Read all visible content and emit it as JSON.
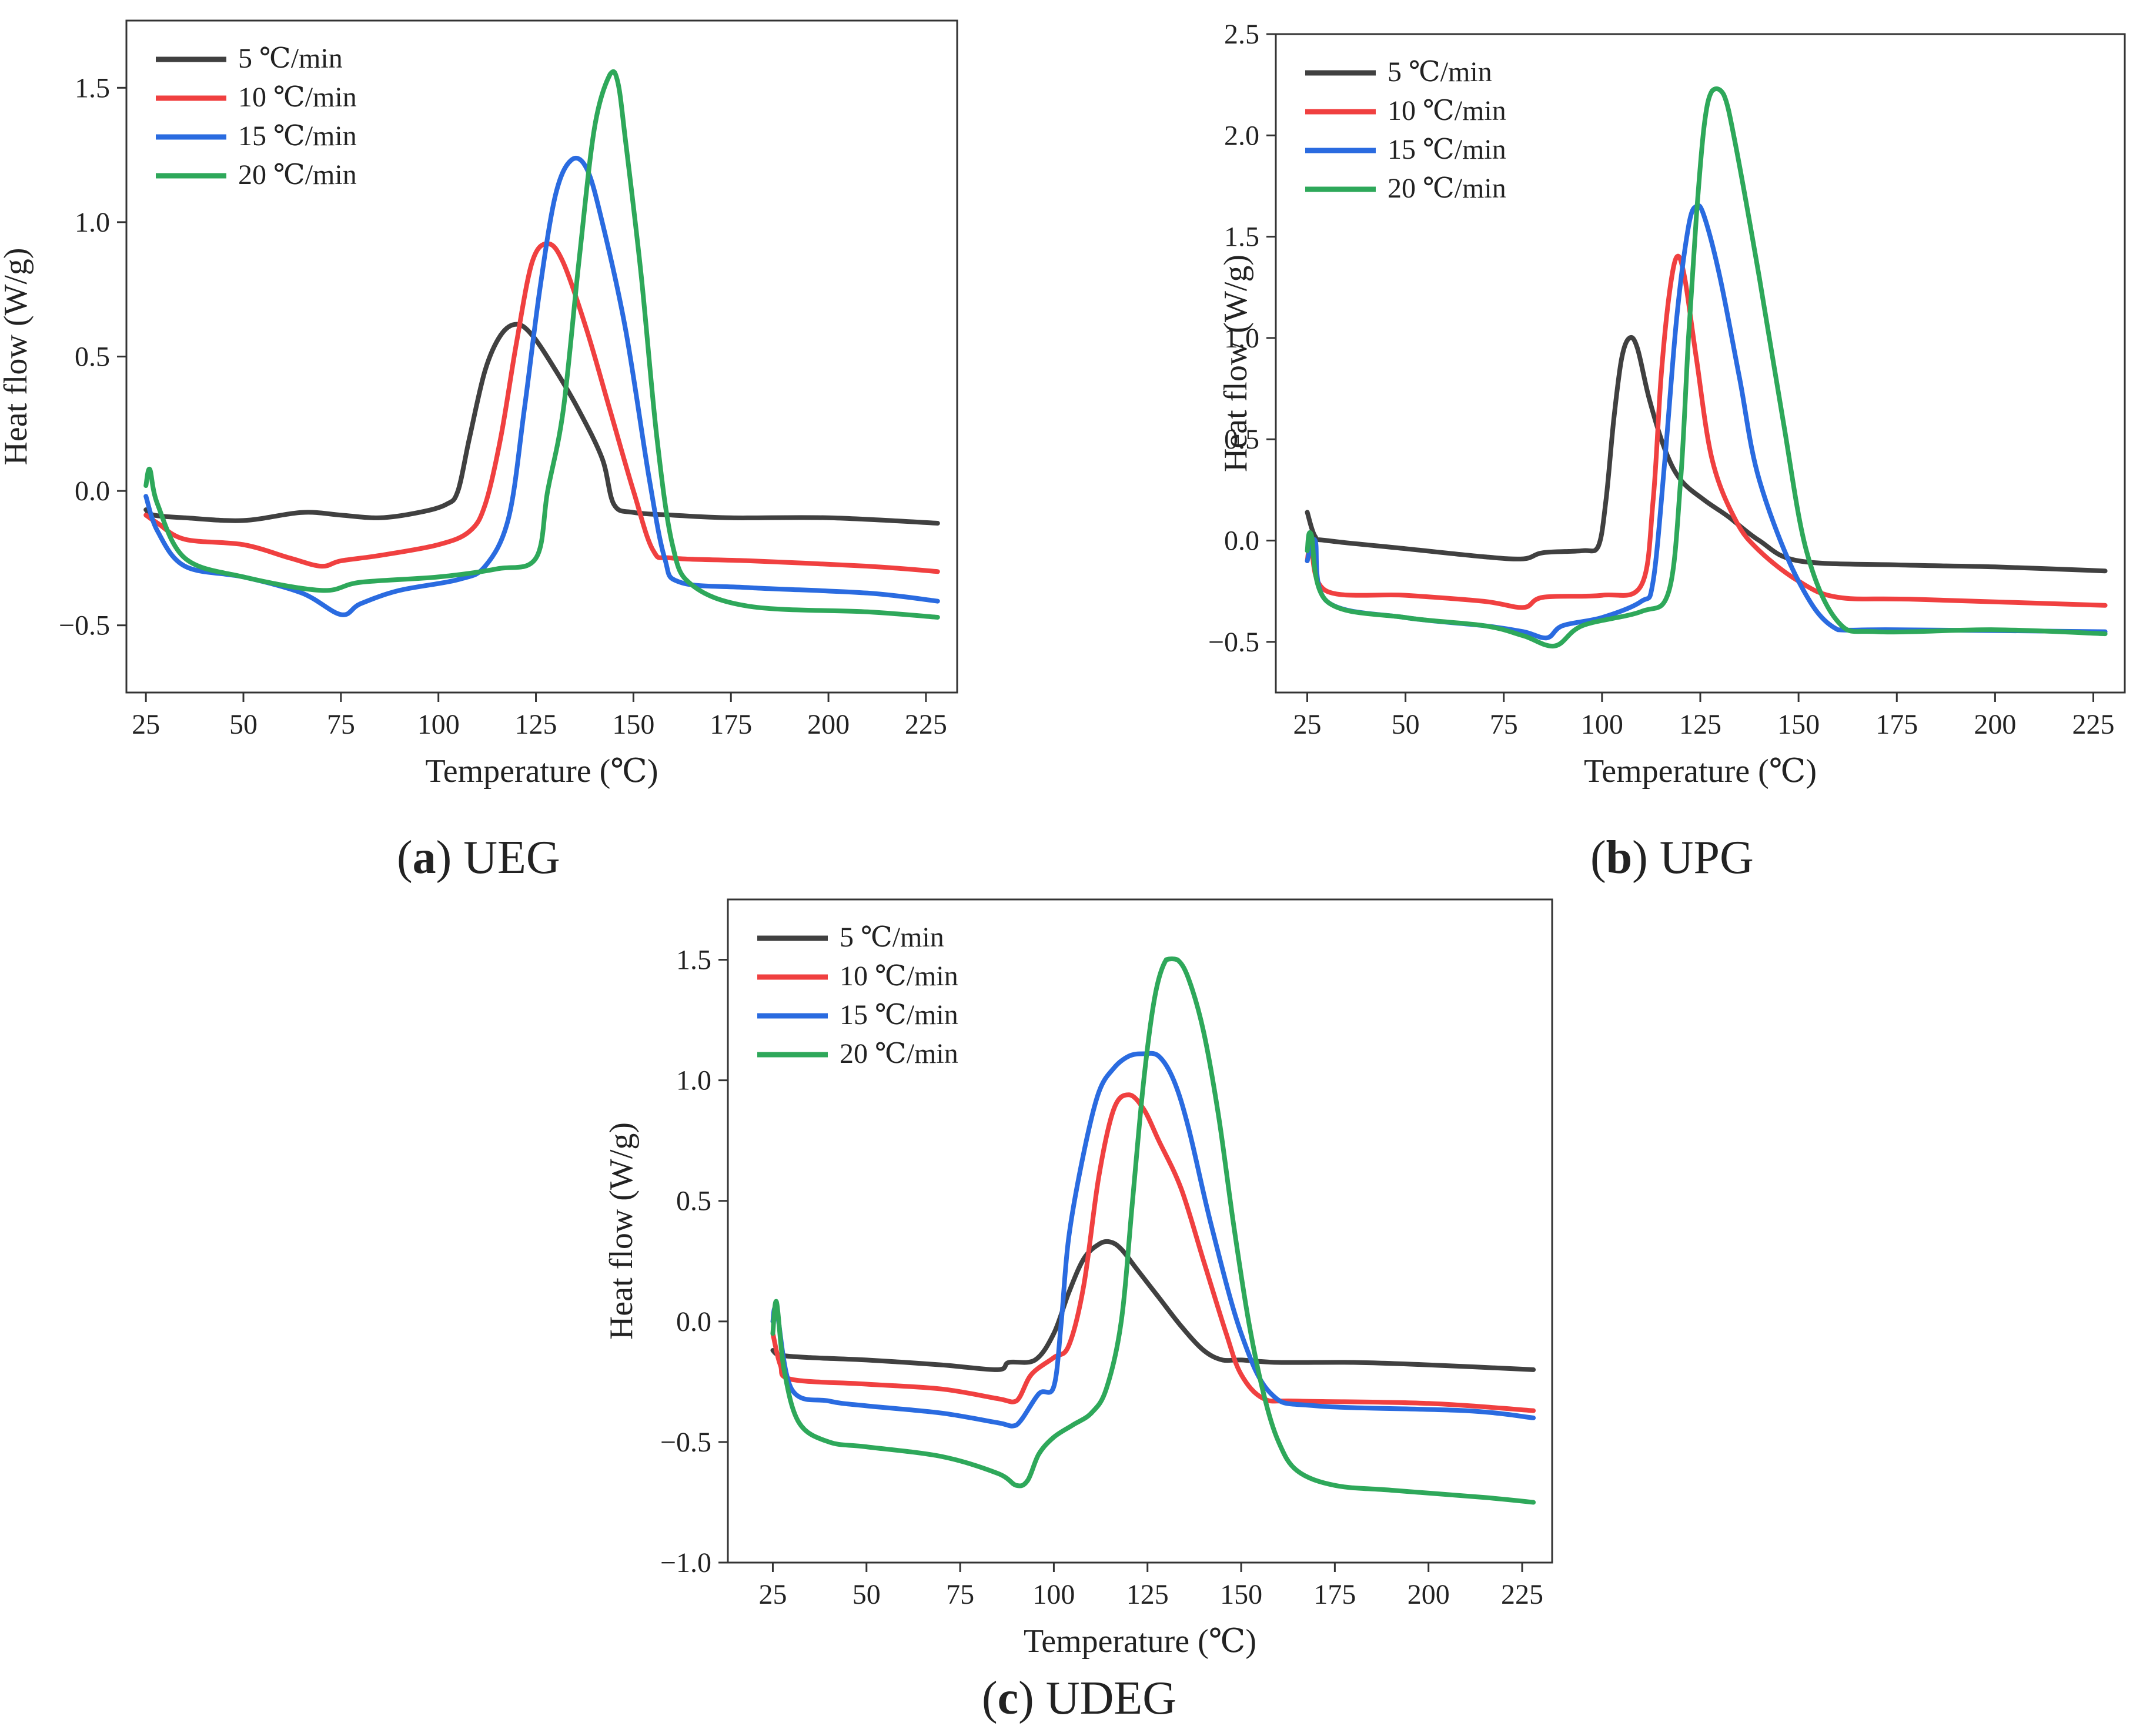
{
  "figure": {
    "captions": [
      {
        "letter": "a",
        "name": "UEG"
      },
      {
        "letter": "b",
        "name": "UPG"
      },
      {
        "letter": "c",
        "name": "UDEG"
      }
    ]
  },
  "chart_data": [
    {
      "id": "a",
      "type": "line",
      "caption_letter": "a",
      "caption_name": "UEG",
      "xlabel": "Temperature (℃)",
      "ylabel": "Heat flow (W/g)",
      "xlim": [
        20,
        233
      ],
      "ylim": [
        -0.75,
        1.75
      ],
      "xticks": [
        25,
        50,
        75,
        100,
        125,
        150,
        175,
        200,
        225
      ],
      "yticks": [
        -0.5,
        0.0,
        0.5,
        1.0,
        1.5
      ],
      "ytick_labels": [
        "−0.5",
        "0.0",
        "0.5",
        "1.0",
        "1.5"
      ],
      "legend_position": "top-left",
      "series": [
        {
          "name": "5 ℃/min",
          "color": "#404040",
          "x": [
            25,
            27,
            35,
            50,
            65,
            75,
            85,
            95,
            102,
            105,
            108,
            112,
            116,
            120,
            124,
            130,
            136,
            142,
            145,
            150,
            160,
            175,
            200,
            228
          ],
          "y": [
            -0.07,
            -0.09,
            -0.1,
            -0.11,
            -0.08,
            -0.09,
            -0.1,
            -0.08,
            -0.05,
            0.0,
            0.2,
            0.45,
            0.58,
            0.62,
            0.58,
            0.45,
            0.3,
            0.12,
            -0.05,
            -0.08,
            -0.09,
            -0.1,
            -0.1,
            -0.12
          ]
        },
        {
          "name": "10 ℃/min",
          "color": "#f04040",
          "x": [
            25,
            28,
            35,
            50,
            62,
            70,
            75,
            85,
            100,
            108,
            112,
            116,
            120,
            124,
            128,
            132,
            138,
            144,
            150,
            155,
            160,
            180,
            210,
            228
          ],
          "y": [
            -0.09,
            -0.12,
            -0.18,
            -0.2,
            -0.25,
            -0.28,
            -0.26,
            -0.24,
            -0.2,
            -0.15,
            -0.05,
            0.2,
            0.55,
            0.85,
            0.92,
            0.85,
            0.6,
            0.3,
            0.0,
            -0.22,
            -0.25,
            -0.26,
            -0.28,
            -0.3
          ]
        },
        {
          "name": "15 ℃/min",
          "color": "#2a6be0",
          "x": [
            25,
            28,
            35,
            50,
            65,
            75,
            80,
            90,
            105,
            112,
            118,
            122,
            126,
            130,
            134,
            138,
            142,
            148,
            154,
            158,
            162,
            180,
            210,
            228
          ],
          "y": [
            -0.02,
            -0.15,
            -0.28,
            -0.32,
            -0.38,
            -0.46,
            -0.42,
            -0.37,
            -0.33,
            -0.28,
            -0.1,
            0.3,
            0.75,
            1.1,
            1.23,
            1.2,
            1.0,
            0.6,
            0.05,
            -0.25,
            -0.34,
            -0.36,
            -0.38,
            -0.41
          ]
        },
        {
          "name": "20 ℃/min",
          "color": "#2ea85a",
          "x": [
            25,
            26,
            28,
            35,
            50,
            70,
            80,
            100,
            115,
            125,
            128,
            132,
            136,
            140,
            144,
            146,
            148,
            152,
            156,
            160,
            165,
            180,
            210,
            228
          ],
          "y": [
            0.02,
            0.08,
            -0.05,
            -0.25,
            -0.32,
            -0.37,
            -0.34,
            -0.32,
            -0.29,
            -0.25,
            0.0,
            0.3,
            0.85,
            1.35,
            1.55,
            1.52,
            1.3,
            0.8,
            0.2,
            -0.2,
            -0.35,
            -0.43,
            -0.45,
            -0.47
          ]
        }
      ]
    },
    {
      "id": "b",
      "type": "line",
      "caption_letter": "b",
      "caption_name": "UPG",
      "xlabel": "Temperature (℃)",
      "ylabel": "Heat flow (W/g)",
      "xlim": [
        17,
        233
      ],
      "ylim": [
        -0.75,
        2.5
      ],
      "xticks": [
        25,
        50,
        75,
        100,
        125,
        150,
        175,
        200,
        225
      ],
      "yticks": [
        -0.5,
        0.0,
        0.5,
        1.0,
        1.5,
        2.0,
        2.5
      ],
      "ytick_labels": [
        "−0.5",
        "0.0",
        "0.5",
        "1.0",
        "1.5",
        "2.0",
        "2.5"
      ],
      "legend_position": "top-left",
      "series": [
        {
          "name": "5 ℃/min",
          "color": "#404040",
          "x": [
            25,
            27,
            30,
            50,
            70,
            80,
            85,
            95,
            99,
            101,
            103,
            105,
            107,
            109,
            112,
            116,
            120,
            126,
            132,
            140,
            150,
            175,
            200,
            228
          ],
          "y": [
            0.14,
            0.02,
            0.0,
            -0.04,
            -0.08,
            -0.09,
            -0.06,
            -0.05,
            -0.03,
            0.2,
            0.6,
            0.9,
            1.0,
            0.95,
            0.7,
            0.45,
            0.3,
            0.2,
            0.12,
            0.0,
            -0.1,
            -0.12,
            -0.13,
            -0.15
          ]
        },
        {
          "name": "10 ℃/min",
          "color": "#f04040",
          "x": [
            25,
            26,
            30,
            50,
            70,
            80,
            85,
            100,
            110,
            113,
            115,
            117,
            119,
            121,
            124,
            128,
            134,
            140,
            150,
            160,
            180,
            228
          ],
          "y": [
            -0.1,
            -0.05,
            -0.25,
            -0.27,
            -0.3,
            -0.33,
            -0.28,
            -0.27,
            -0.22,
            0.2,
            0.8,
            1.2,
            1.4,
            1.3,
            0.9,
            0.4,
            0.1,
            -0.05,
            -0.2,
            -0.28,
            -0.29,
            -0.32
          ]
        },
        {
          "name": "15 ℃/min",
          "color": "#2a6be0",
          "x": [
            25,
            27,
            30,
            50,
            70,
            80,
            86,
            90,
            100,
            110,
            113,
            116,
            119,
            122,
            124,
            126,
            130,
            135,
            140,
            150,
            160,
            175,
            228
          ],
          "y": [
            -0.1,
            0.0,
            -0.3,
            -0.38,
            -0.42,
            -0.45,
            -0.48,
            -0.42,
            -0.38,
            -0.3,
            -0.2,
            0.4,
            1.1,
            1.55,
            1.65,
            1.6,
            1.3,
            0.8,
            0.3,
            -0.2,
            -0.44,
            -0.44,
            -0.45
          ]
        },
        {
          "name": "20 ℃/min",
          "color": "#2ea85a",
          "x": [
            25,
            26,
            30,
            50,
            70,
            80,
            88,
            95,
            110,
            117,
            120,
            122,
            124,
            126,
            128,
            131,
            134,
            140,
            146,
            152,
            160,
            170,
            200,
            228
          ],
          "y": [
            -0.05,
            0.03,
            -0.3,
            -0.38,
            -0.42,
            -0.47,
            -0.52,
            -0.42,
            -0.35,
            -0.25,
            0.3,
            1.0,
            1.6,
            2.05,
            2.22,
            2.2,
            1.95,
            1.3,
            0.6,
            -0.05,
            -0.4,
            -0.45,
            -0.44,
            -0.46
          ]
        }
      ]
    },
    {
      "id": "c",
      "type": "line",
      "caption_letter": "c",
      "caption_name": "UDEG",
      "xlabel": "Temperature (℃)",
      "ylabel": "Heat flow (W/g)",
      "xlim": [
        13,
        233
      ],
      "ylim": [
        -1.0,
        1.75
      ],
      "xticks": [
        25,
        50,
        75,
        100,
        125,
        150,
        175,
        200,
        225
      ],
      "yticks": [
        -1.0,
        -0.5,
        0.0,
        0.5,
        1.0,
        1.5
      ],
      "ytick_labels": [
        "−1.0",
        "−0.5",
        "0.0",
        "0.5",
        "1.0",
        "1.5"
      ],
      "legend_position": "top-left",
      "series": [
        {
          "name": "5 ℃/min",
          "color": "#404040",
          "x": [
            25,
            27,
            35,
            50,
            70,
            85,
            88,
            95,
            100,
            104,
            108,
            112,
            115,
            118,
            122,
            128,
            134,
            140,
            145,
            150,
            160,
            180,
            200,
            228
          ],
          "y": [
            -0.12,
            -0.14,
            -0.15,
            -0.16,
            -0.18,
            -0.2,
            -0.17,
            -0.16,
            -0.05,
            0.12,
            0.26,
            0.32,
            0.33,
            0.3,
            0.22,
            0.1,
            -0.02,
            -0.12,
            -0.16,
            -0.16,
            -0.17,
            -0.17,
            -0.18,
            -0.2
          ]
        },
        {
          "name": "10 ℃/min",
          "color": "#f04040",
          "x": [
            25,
            27,
            30,
            50,
            70,
            85,
            90,
            94,
            100,
            104,
            108,
            112,
            116,
            120,
            124,
            128,
            134,
            140,
            146,
            150,
            156,
            165,
            200,
            228
          ],
          "y": [
            -0.05,
            -0.18,
            -0.24,
            -0.26,
            -0.28,
            -0.32,
            -0.33,
            -0.22,
            -0.15,
            -0.1,
            0.15,
            0.6,
            0.88,
            0.94,
            0.88,
            0.75,
            0.55,
            0.25,
            -0.05,
            -0.22,
            -0.32,
            -0.33,
            -0.34,
            -0.37
          ]
        },
        {
          "name": "15 ℃/min",
          "color": "#2a6be0",
          "x": [
            25,
            26,
            30,
            40,
            50,
            70,
            85,
            90,
            96,
            100,
            102,
            104,
            108,
            112,
            116,
            120,
            124,
            128,
            132,
            136,
            142,
            150,
            158,
            170,
            210,
            228
          ],
          "y": [
            0.0,
            0.05,
            -0.28,
            -0.33,
            -0.35,
            -0.38,
            -0.42,
            -0.43,
            -0.3,
            -0.27,
            0.0,
            0.35,
            0.7,
            0.95,
            1.05,
            1.1,
            1.11,
            1.1,
            1.0,
            0.8,
            0.4,
            -0.05,
            -0.3,
            -0.35,
            -0.37,
            -0.4
          ]
        },
        {
          "name": "20 ℃/min",
          "color": "#2ea85a",
          "x": [
            25,
            26,
            28,
            32,
            40,
            50,
            70,
            85,
            90,
            93,
            96,
            100,
            105,
            110,
            114,
            118,
            121,
            124,
            127,
            130,
            133,
            136,
            140,
            144,
            148,
            152,
            156,
            160,
            165,
            175,
            190,
            215,
            228
          ],
          "y": [
            -0.05,
            0.08,
            -0.2,
            -0.42,
            -0.5,
            -0.52,
            -0.56,
            -0.63,
            -0.68,
            -0.66,
            -0.55,
            -0.48,
            -0.43,
            -0.38,
            -0.28,
            0.0,
            0.5,
            1.0,
            1.35,
            1.5,
            1.5,
            1.42,
            1.2,
            0.85,
            0.4,
            0.0,
            -0.3,
            -0.5,
            -0.62,
            -0.68,
            -0.7,
            -0.73,
            -0.75
          ]
        }
      ]
    }
  ]
}
